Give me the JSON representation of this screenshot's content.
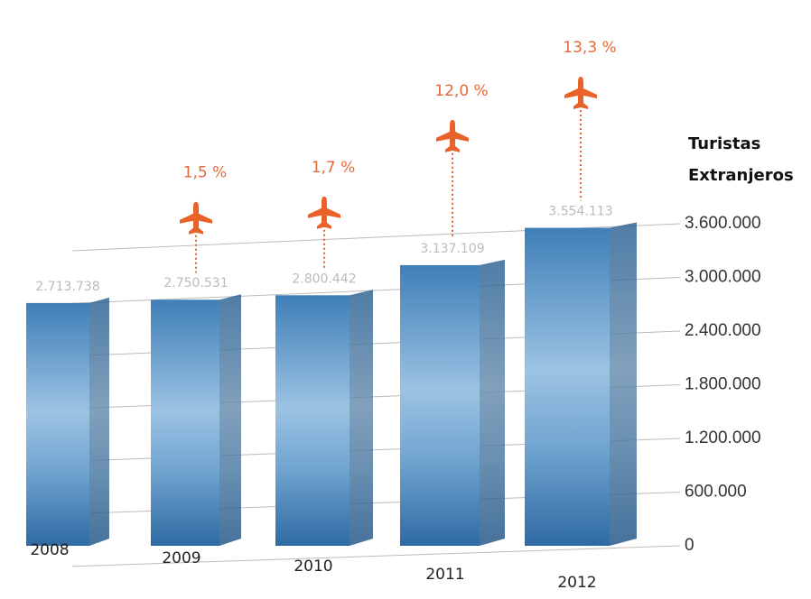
{
  "chart_data": {
    "type": "bar",
    "ylabel": [
      "Turistas",
      "Extranjeros"
    ],
    "categories": [
      "2008",
      "2009",
      "2010",
      "2011",
      "2012"
    ],
    "values": [
      2713738,
      2750531,
      2800442,
      3137109,
      3554113
    ],
    "value_labels": [
      "2.713.738",
      "2.750.531",
      "2.800.442",
      "3.137.109",
      "3.554.113"
    ],
    "color": "#3f7fb8",
    "growth": {
      "color": "#e8622a",
      "values": [
        null,
        1.5,
        1.7,
        12.0,
        13.3
      ],
      "value_labels": [
        null,
        "1,5 %",
        "1,7 %",
        "12,0 %",
        "13,3 %"
      ]
    },
    "ylim": [
      0,
      3600000
    ],
    "yticks": [
      0,
      {
        "value": 600000,
        "label": "600.000"
      },
      {
        "value": 1200000,
        "label": "1.200.000"
      },
      {
        "value": 1800000,
        "label": "1.800.000"
      },
      {
        "value": 2400000,
        "label": "2.400.000"
      },
      {
        "value": 3000000,
        "label": "3.000.000"
      },
      {
        "value": 3600000,
        "label": "3.600.000"
      }
    ],
    "grid": true
  }
}
